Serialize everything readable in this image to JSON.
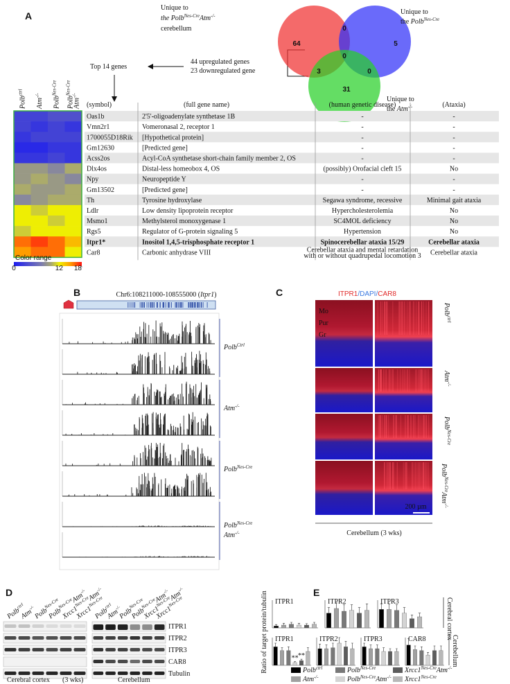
{
  "A": {
    "label": "A",
    "venn": {
      "left_label": [
        [
          {
            "text": "Unique to"
          }
        ],
        [
          {
            "text": "the Polb",
            "sup": "Nes-Cre",
            "italic": true
          },
          {
            "text": "Atm",
            "sup": "-/-",
            "italic": true
          }
        ],
        [
          {
            "text": "cerebellum"
          }
        ]
      ],
      "right_label": [
        [
          {
            "text": "Unique to"
          }
        ],
        [
          {
            "text": "the "
          },
          {
            "text": "Polb",
            "sup": "Nes-Cre",
            "italic": true
          }
        ]
      ],
      "bottom_label": [
        [
          {
            "text": "Unique to"
          }
        ],
        [
          {
            "text": "the "
          },
          {
            "text": "Atm",
            "sup": "-/-",
            "italic": true
          }
        ]
      ],
      "counts": [
        64,
        0,
        5,
        0,
        3,
        0,
        31
      ]
    },
    "upregulated": "44 upregulated genes",
    "downregulated": "23 downregulated gene",
    "top": "Top 14 genes",
    "heatmap": {
      "columns": [
        [
          [
            {
              "text": "Polb",
              "sup": "ctrl",
              "italic": true
            }
          ]
        ],
        [
          [
            {
              "text": "Atm",
              "sup": "-/-",
              "italic": true
            }
          ]
        ],
        [
          [
            {
              "text": "Polb",
              "sup": "Nes-Cre",
              "italic": true
            }
          ]
        ],
        [
          [
            {
              "text": "Polb",
              "sup": "Nes-Cre",
              "italic": true
            }
          ],
          [
            {
              "text": "Atm",
              "sup": "-/-",
              "italic": true
            }
          ]
        ]
      ],
      "values": [
        [
          3,
          3,
          4,
          4
        ],
        [
          3,
          2,
          3,
          2
        ],
        [
          2,
          3,
          3,
          3
        ],
        [
          1,
          1,
          2,
          2
        ],
        [
          2,
          2,
          3,
          2
        ],
        [
          9,
          9,
          8,
          10
        ],
        [
          9,
          10,
          9,
          8
        ],
        [
          10,
          9,
          9,
          10
        ],
        [
          8,
          9,
          10,
          10
        ],
        [
          12,
          11,
          12,
          12
        ],
        [
          12,
          12,
          11,
          12
        ],
        [
          11,
          12,
          12,
          12
        ],
        [
          16,
          17,
          16,
          14
        ],
        [
          15,
          16,
          16,
          12
        ]
      ],
      "color_range": "Color range",
      "scale_ticks": [
        0,
        12,
        18
      ]
    },
    "table": {
      "headers": [
        "(symbol)",
        "(full gene name)",
        "(human genetic disease)",
        "(Ataxia)"
      ],
      "bold_row": 12,
      "rows": [
        [
          "Oas1b",
          "2'5'-oligoadenylate synthetase 1B",
          "-",
          "-"
        ],
        [
          "Vmn2r1",
          "Vomeronasal 2, receptor 1",
          "-",
          "-"
        ],
        [
          "1700055D18Rik",
          "[Hypothetical protein]",
          "-",
          "-"
        ],
        [
          "Gm12630",
          "[Predicted gene]",
          "-",
          "-"
        ],
        [
          "Acss2os",
          "Acyl-CoA synthetase short-chain family member 2, OS",
          "-",
          "-"
        ],
        [
          "Dlx4os",
          "Distal-less homeobox 4, OS",
          "(possibly) Orofacial cleft 15",
          "No"
        ],
        [
          "Npy",
          "Neuropeptide Y",
          "-",
          "-"
        ],
        [
          "Gm13502",
          "[Predicted gene]",
          "-",
          "-"
        ],
        [
          "Th",
          "Tyrosine hydroxylase",
          "Segawa syndrome, recessive",
          "Minimal gait ataxia"
        ],
        [
          "Ldlr",
          "Low density lipoprotein receptor",
          "Hypercholesterolemia",
          "No"
        ],
        [
          "Msmo1",
          "Methylsterol monoxygenase 1",
          "SC4MOL deficiency",
          "No"
        ],
        [
          "Rgs5",
          "Regulator of G-protein signaling 5",
          "Hypertension",
          "No"
        ],
        [
          "Itpr1*",
          "Inositol 1,4,5-trisphosphate receptor 1",
          "Spinocerebellar ataxia 15/29",
          "Cerebellar ataxia"
        ],
        [
          "Car8",
          "Carbonic anhydrase VIII",
          [
            "Cerebellar ataxia and mental retardation",
            "with or without quadrupedal locomotion 3"
          ],
          "Cerebellar ataxia"
        ]
      ]
    }
  },
  "B": {
    "label": "B",
    "title": [
      {
        "text": "Chr6:108211000-108555000 ("
      },
      {
        "text": "Itpr1",
        "italic": true
      },
      {
        "text": ")"
      }
    ],
    "groups": [
      [
        [
          {
            "text": "Polb",
            "sup": "Ctrl",
            "italic": true
          }
        ]
      ],
      [
        [
          {
            "text": "Atm",
            "sup": "-/-",
            "italic": true
          }
        ]
      ],
      [
        [
          {
            "text": "Polb",
            "sup": "Nes-Cre",
            "italic": true
          }
        ]
      ],
      [
        [
          {
            "text": "Polb",
            "sup": "Nes-Cre",
            "italic": true
          }
        ],
        [
          {
            "text": "Atm",
            "sup": "-/-",
            "italic": true
          }
        ]
      ]
    ]
  },
  "C": {
    "label": "C",
    "title": [
      {
        "text": "ITPR1",
        "color": "#e02828"
      },
      {
        "text": "/DAPI/",
        "color": "#3a78e0"
      },
      {
        "text": "CAR8",
        "color": "#e02828"
      }
    ],
    "layers": [
      "Mo",
      "Pur",
      "Gr"
    ],
    "scale_bar": "200 µm",
    "caption": "Cerebellum (3 wks)",
    "rows": [
      [
        [
          {
            "text": "Polb",
            "sup": "ctrl",
            "italic": true
          }
        ]
      ],
      [
        [
          {
            "text": "Atm",
            "sup": "-/-",
            "italic": true
          }
        ]
      ],
      [
        [
          {
            "text": "Polb",
            "sup": "Nes-Cre",
            "italic": true
          }
        ]
      ],
      [
        [
          {
            "text": "Polb",
            "sup": "Nes-Cre",
            "italic": true
          },
          {
            "text": "Atm",
            "sup": "-/-",
            "italic": true
          }
        ]
      ]
    ]
  },
  "D": {
    "label": "D",
    "lanes": [
      [
        {
          "text": "Polb",
          "sup": "ctrl",
          "italic": true
        }
      ],
      [
        {
          "text": "Atm",
          "sup": "-/-",
          "italic": true
        }
      ],
      [
        {
          "text": "Polb",
          "sup": "Nes-Cre",
          "italic": true
        }
      ],
      [
        {
          "text": "Polb",
          "sup": "Nes-Cre",
          "italic": true
        },
        {
          "text": "Atm",
          "sup": "-/-",
          "italic": true
        }
      ],
      [
        {
          "text": "Xrcc1",
          "sup": "Nes-Cre",
          "italic": true
        },
        {
          "text": "Atm",
          "sup": "-/-",
          "italic": true
        }
      ],
      [
        {
          "text": "Xrcc1",
          "sup": "Nes-Cre",
          "italic": true
        }
      ]
    ],
    "bands": [
      "ITPR1",
      "ITPR2",
      "ITPR3",
      "CAR8",
      "Tubulin"
    ],
    "groups": [
      "Cerebral cortex",
      "(3 wks)",
      "Cerebellum"
    ]
  },
  "E": {
    "label": "E",
    "type": "bar",
    "y_label": "Ratio of target protein/tubulin",
    "region_labels": [
      "Cerebral cortex",
      "Cerebellum"
    ],
    "ylim": [
      0,
      1.5
    ],
    "series": [
      {
        "name": [
          {
            "text": "Polb",
            "sup": "ctrl",
            "italic": true
          }
        ],
        "color": "#000000"
      },
      {
        "name": [
          {
            "text": "Atm",
            "sup": "-/-",
            "italic": true
          }
        ],
        "color": "#a0a0a0"
      },
      {
        "name": [
          {
            "text": "Polb",
            "sup": "Nes-Cre",
            "italic": true
          }
        ],
        "color": "#787878"
      },
      {
        "name": [
          {
            "text": "Polb",
            "sup": "Nes-Cre",
            "italic": true
          },
          {
            "text": "Atm",
            "sup": "-/-",
            "italic": true
          }
        ],
        "color": "#d4d4d4"
      },
      {
        "name": [
          {
            "text": "Xrcc1",
            "sup": "Nes-Cre",
            "italic": true
          },
          {
            "text": "Atm",
            "sup": "-/-",
            "italic": true
          }
        ],
        "color": "#5c5c5c"
      },
      {
        "name": [
          {
            "text": "Xrcc1",
            "sup": "Nes-Cre",
            "italic": true
          }
        ],
        "color": "#b8b8b8"
      }
    ],
    "rows": [
      [
        {
          "title": "ITPR1",
          "values": [
            0.1,
            0.15,
            0.2,
            0.15,
            0.15,
            0.2
          ],
          "errors": [
            0.08,
            0.1,
            0.1,
            0.1,
            0.08,
            0.1
          ]
        },
        {
          "title": "ITPR2",
          "values": [
            0.8,
            1.05,
            0.9,
            0.95,
            0.8,
            0.95
          ],
          "errors": [
            0.3,
            0.3,
            0.35,
            0.3,
            0.3,
            0.35
          ]
        },
        {
          "title": "ITPR3",
          "values": [
            1.0,
            1.0,
            0.95,
            0.8,
            0.5,
            0.6
          ],
          "errors": [
            0.3,
            0.3,
            0.3,
            0.3,
            0.2,
            0.2
          ]
        }
      ],
      [
        {
          "title": "ITPR1",
          "values": [
            1.0,
            0.8,
            0.8,
            0.15,
            0.25,
            0.75
          ],
          "errors": [
            0.2,
            0.15,
            0.2,
            0.05,
            0.08,
            0.2
          ],
          "stars": [
            null,
            null,
            null,
            "**",
            "**",
            null
          ]
        },
        {
          "title": "ITPR2",
          "values": [
            0.9,
            0.9,
            0.95,
            1.2,
            1.0,
            0.9
          ],
          "errors": [
            0.25,
            0.2,
            0.25,
            0.3,
            0.3,
            0.3
          ]
        },
        {
          "title": "ITPR3",
          "values": [
            1.0,
            0.9,
            0.9,
            0.75,
            0.75,
            0.75
          ],
          "errors": [
            0.2,
            0.2,
            0.2,
            0.2,
            0.15,
            0.15
          ]
        },
        {
          "title": "CAR8",
          "values": [
            1.1,
            0.85,
            0.8,
            0.55,
            0.8,
            0.8
          ],
          "errors": [
            0.35,
            0.2,
            0.2,
            0.15,
            0.25,
            0.25
          ]
        }
      ]
    ]
  }
}
